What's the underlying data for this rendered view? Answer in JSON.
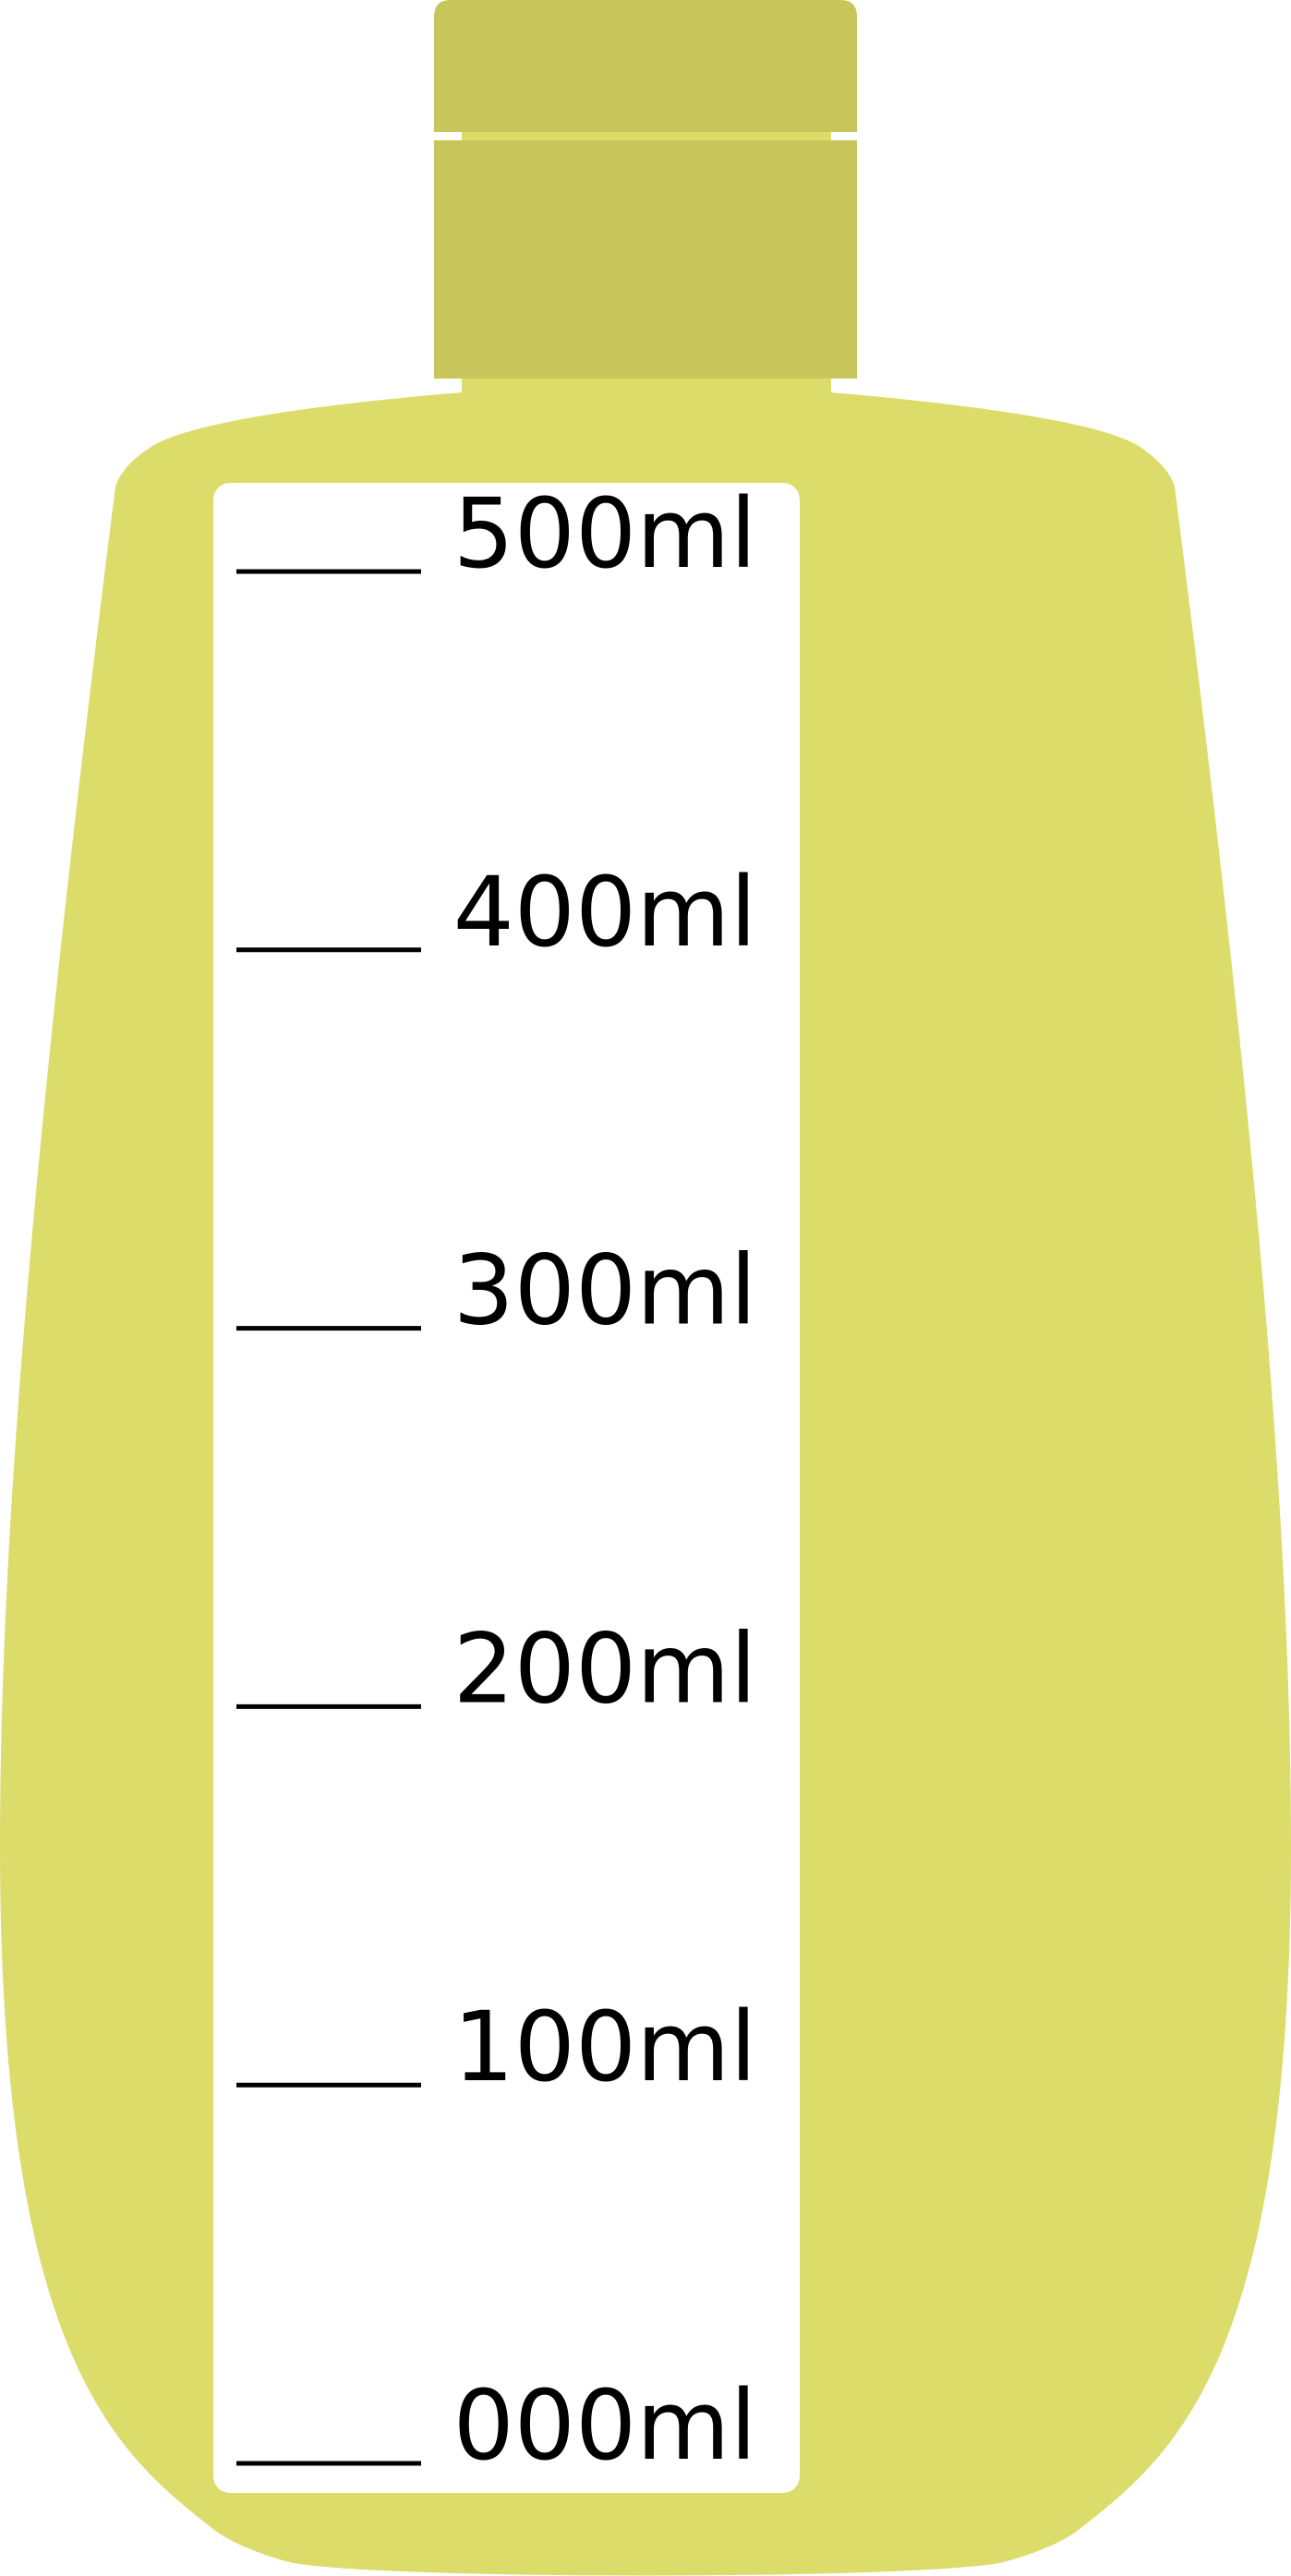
{
  "colors": {
    "background": "#ffffff",
    "bottle_body": "#dcdc6b",
    "bottle_cap": "#c8c65a",
    "label_panel": "#ffffff",
    "marks": "#000000"
  },
  "scale": {
    "unit": "ml",
    "marks": [
      {
        "value": 500,
        "label": "500ml"
      },
      {
        "value": 400,
        "label": "400ml"
      },
      {
        "value": 300,
        "label": "300ml"
      },
      {
        "value": 200,
        "label": "200ml"
      },
      {
        "value": 100,
        "label": "100ml"
      },
      {
        "value": 0,
        "label": "000ml"
      }
    ]
  }
}
